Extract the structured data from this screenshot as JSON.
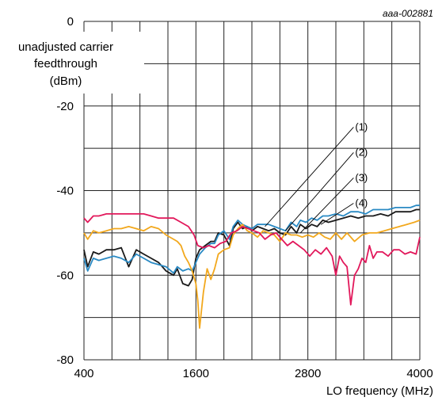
{
  "chart_data": {
    "type": "line",
    "code": "aaa-002881",
    "ylabel_lines": [
      "unadjusted carrier",
      "feedthrough",
      "(dBm)"
    ],
    "xlabel": "LO frequency (MHz)",
    "xlim": [
      400,
      4000
    ],
    "ylim": [
      -80,
      0
    ],
    "x_ticks": [
      400,
      1600,
      2800,
      4000
    ],
    "x_tick_labels": [
      "400",
      "1600",
      "2800",
      "4000"
    ],
    "y_ticks": [
      0,
      -20,
      -40,
      -60,
      -80
    ],
    "y_tick_labels": [
      "0",
      "-20",
      "-40",
      "-60",
      "-80"
    ],
    "grid": true,
    "series": [
      {
        "name": "(1)",
        "color": "#1a1a1a",
        "x": [
          400,
          440,
          500,
          560,
          640,
          720,
          800,
          880,
          960,
          1040,
          1120,
          1200,
          1280,
          1360,
          1400,
          1460,
          1520,
          1560,
          1600,
          1640,
          1700,
          1760,
          1800,
          1840,
          1900,
          1960,
          2000,
          2050,
          2100,
          2150,
          2200,
          2260,
          2320,
          2380,
          2440,
          2500,
          2560,
          2620,
          2680,
          2720,
          2780,
          2840,
          2900,
          2960,
          3020,
          3100,
          3180,
          3260,
          3340,
          3420,
          3500,
          3580,
          3660,
          3740,
          3820,
          3900,
          3960,
          4000
        ],
        "y": [
          -54,
          -58,
          -54.5,
          -55,
          -54,
          -54,
          -53.5,
          -58,
          -54,
          -55,
          -56,
          -57,
          -59,
          -60,
          -58.5,
          -62,
          -62.5,
          -61,
          -56,
          -54,
          -53,
          -52,
          -52,
          -50,
          -50.5,
          -53,
          -49,
          -47.5,
          -49,
          -48.5,
          -49.5,
          -48.5,
          -49,
          -49.5,
          -49,
          -50,
          -50.5,
          -48.5,
          -50,
          -48,
          -49,
          -48,
          -48.5,
          -47,
          -47.5,
          -47,
          -46.5,
          -46,
          -46.5,
          -46,
          -46,
          -45.5,
          -46,
          -45,
          -45,
          -45,
          -44.5,
          -44.5
        ]
      },
      {
        "name": "(2)",
        "color": "#2a8ac4",
        "x": [
          400,
          440,
          500,
          560,
          640,
          720,
          800,
          880,
          960,
          1040,
          1120,
          1200,
          1280,
          1360,
          1400,
          1460,
          1520,
          1560,
          1600,
          1640,
          1700,
          1760,
          1800,
          1840,
          1900,
          1960,
          2000,
          2050,
          2100,
          2150,
          2200,
          2260,
          2320,
          2380,
          2440,
          2500,
          2560,
          2620,
          2680,
          2720,
          2780,
          2840,
          2900,
          2960,
          3020,
          3100,
          3180,
          3260,
          3340,
          3420,
          3500,
          3580,
          3660,
          3740,
          3820,
          3900,
          3960,
          4000
        ],
        "y": [
          -56,
          -59,
          -56,
          -56.5,
          -56,
          -55.5,
          -56,
          -57,
          -55,
          -56,
          -57,
          -57.5,
          -58,
          -59.5,
          -58,
          -59,
          -58.5,
          -59,
          -57,
          -55,
          -53.5,
          -52.5,
          -52.5,
          -50.5,
          -49.5,
          -51.5,
          -48.5,
          -47,
          -48,
          -48.5,
          -49,
          -48,
          -48,
          -48,
          -48.5,
          -49,
          -49.5,
          -47.5,
          -48.5,
          -47,
          -47.5,
          -46.5,
          -47,
          -46,
          -46,
          -45.5,
          -46,
          -45,
          -45,
          -45.5,
          -44.5,
          -44.5,
          -44.5,
          -44,
          -44,
          -44,
          -43.5,
          -43.5
        ]
      },
      {
        "name": "(3)",
        "color": "#f2a81d",
        "x": [
          400,
          440,
          500,
          560,
          640,
          720,
          800,
          880,
          960,
          1040,
          1120,
          1200,
          1280,
          1360,
          1400,
          1440,
          1480,
          1520,
          1560,
          1600,
          1620,
          1640,
          1680,
          1720,
          1760,
          1800,
          1840,
          1900,
          1960,
          2000,
          2050,
          2100,
          2150,
          2200,
          2260,
          2320,
          2380,
          2440,
          2500,
          2560,
          2620,
          2680,
          2740,
          2800,
          2860,
          2920,
          2980,
          3040,
          3100,
          3160,
          3220,
          3300,
          3380,
          3460,
          3540,
          3620,
          3700,
          3780,
          3860,
          3940,
          4000
        ],
        "y": [
          -50,
          -51.5,
          -49.5,
          -50,
          -49.5,
          -49,
          -49,
          -48.5,
          -49,
          -49.5,
          -48.5,
          -49,
          -50.5,
          -51.5,
          -52,
          -53,
          -55.5,
          -57,
          -59,
          -62,
          -66,
          -72.5,
          -64,
          -58.5,
          -61,
          -58.5,
          -55,
          -54,
          -53.5,
          -50.5,
          -49,
          -48,
          -49.5,
          -50,
          -51,
          -49.5,
          -50,
          -50.5,
          -52,
          -50,
          -50.5,
          -50.5,
          -51,
          -50.5,
          -51,
          -50,
          -51,
          -51.5,
          -50,
          -51.5,
          -50,
          -52,
          -50.5,
          -50,
          -50,
          -49.5,
          -49,
          -48.5,
          -48,
          -47.5,
          -47
        ]
      },
      {
        "name": "(4)",
        "color": "#e2185b",
        "x": [
          400,
          440,
          500,
          560,
          640,
          720,
          800,
          880,
          960,
          1040,
          1120,
          1200,
          1280,
          1360,
          1440,
          1520,
          1580,
          1620,
          1680,
          1740,
          1800,
          1860,
          1920,
          1980,
          2040,
          2100,
          2160,
          2220,
          2280,
          2340,
          2400,
          2460,
          2520,
          2580,
          2640,
          2700,
          2760,
          2820,
          2880,
          2940,
          3000,
          3060,
          3100,
          3140,
          3180,
          3220,
          3260,
          3300,
          3340,
          3380,
          3420,
          3460,
          3500,
          3540,
          3600,
          3660,
          3720,
          3780,
          3840,
          3900,
          3960,
          4000
        ],
        "y": [
          -46.5,
          -47.5,
          -46,
          -46,
          -45.5,
          -45.5,
          -45.5,
          -45.5,
          -45.5,
          -45.5,
          -46,
          -46.5,
          -46.5,
          -46.5,
          -47.5,
          -48.5,
          -50.5,
          -53,
          -53.5,
          -53,
          -53.5,
          -52.5,
          -52,
          -50,
          -49.5,
          -48.5,
          -49,
          -49.5,
          -50,
          -51.5,
          -50.5,
          -50,
          -51.5,
          -53,
          -52,
          -53,
          -54,
          -55.5,
          -54,
          -55,
          -53.5,
          -55.5,
          -60,
          -55.5,
          -57,
          -58,
          -67,
          -60,
          -58.5,
          -56,
          -57,
          -53,
          -56,
          -54.5,
          -54.5,
          -55.5,
          -54,
          -54,
          -55,
          -54.5,
          -55,
          -51
        ]
      }
    ],
    "callouts": [
      "(1)",
      "(2)",
      "(3)",
      "(4)"
    ]
  }
}
